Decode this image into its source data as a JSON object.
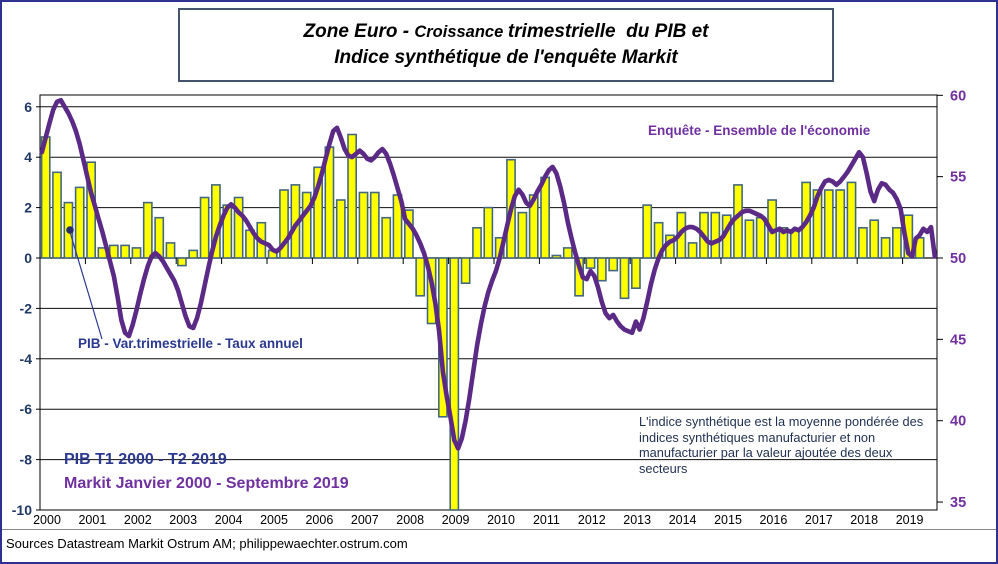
{
  "title": {
    "zone": "Zone Euro - ",
    "croissance": "Croissance ",
    "rest": "trimestrielle  du PIB et",
    "line2": "Indice synthétique de l'enquête Markit"
  },
  "legend": {
    "line_series": "Enquête - Ensemble de l'économie",
    "bar_series": "PIB - Var.trimestrielle - Taux annuel"
  },
  "coverage": {
    "pib": "PIB T1 2000 - T2 2019",
    "markit": "Markit Janvier 2000 - Septembre 2019"
  },
  "annotation": "L'indice synthétique est la moyenne pondérée des indices synthétiques manufacturier et non manufacturier par la valeur ajoutée  des deux secteurs",
  "footer": "Sources Datastream Markit Ostrum AM; philippewaechter.ostrum.com",
  "colors": {
    "bar_fill": "#FFFF00",
    "bar_stroke": "#44687F",
    "line": "#5B2A86",
    "left_axis_text": "#1F3864",
    "right_axis_text": "#7030A0",
    "navy_text": "#2B3990",
    "purple_text": "#7030A0",
    "frame": "#2E3192"
  },
  "chart_data": {
    "type": "bar+line",
    "title": "Zone Euro - Croissance trimestrielle du PIB et Indice synthétique de l'enquête Markit",
    "left_axis": {
      "label": "PIB - Var.trimestrielle - Taux annuel (%)",
      "ticks": [
        6,
        4,
        2,
        0,
        -2,
        -4,
        -6,
        -8,
        -10
      ],
      "range": [
        -10,
        6
      ]
    },
    "right_axis": {
      "label": "Enquête - Ensemble de l'économie (indice)",
      "ticks": [
        60,
        55,
        50,
        45,
        40,
        35
      ],
      "range": [
        35,
        60
      ]
    },
    "x_axis": {
      "years": [
        2000,
        2001,
        2002,
        2003,
        2004,
        2005,
        2006,
        2007,
        2008,
        2009,
        2010,
        2011,
        2012,
        2013,
        2014,
        2015,
        2016,
        2017,
        2018,
        2019
      ]
    },
    "grid": "horizontal, every 2 units of left axis",
    "legend_position": "annotations inside plot",
    "series": [
      {
        "name": "PIB - Var.trimestrielle - Taux annuel",
        "type": "bar",
        "axis": "left",
        "start": "2000T1",
        "end": "2019T2",
        "frequency": "quarterly",
        "values": [
          4.8,
          3.4,
          2.2,
          2.8,
          3.8,
          0.4,
          0.5,
          0.5,
          0.4,
          2.2,
          1.6,
          0.6,
          -0.3,
          0.3,
          2.4,
          2.9,
          2.1,
          2.4,
          1.1,
          1.4,
          0.3,
          2.7,
          2.9,
          2.6,
          3.6,
          4.4,
          2.3,
          4.9,
          2.6,
          2.6,
          1.6,
          2.5,
          1.9,
          -1.5,
          -2.6,
          -6.3,
          -11.8,
          -1.0,
          1.2,
          2.0,
          0.8,
          3.9,
          1.8,
          2.5,
          3.2,
          0.1,
          0.4,
          -1.5,
          -0.4,
          -0.9,
          -0.5,
          -1.6,
          -1.2,
          2.1,
          1.4,
          0.9,
          1.8,
          0.6,
          1.8,
          1.8,
          1.7,
          2.9,
          1.5,
          1.6,
          2.3,
          1.2,
          1.1,
          3.0,
          2.7,
          2.7,
          2.7,
          3.0,
          1.2,
          1.5,
          0.8,
          1.2,
          1.7,
          0.8
        ]
      },
      {
        "name": "Enquête - Ensemble de l'économie",
        "type": "line",
        "axis": "right",
        "start": "Janvier 2000",
        "end": "Septembre 2019",
        "frequency": "monthly",
        "values": [
          56.5,
          57.4,
          58.3,
          59.1,
          59.6,
          59.7,
          59.3,
          58.9,
          58.4,
          57.8,
          57.0,
          56.0,
          55.0,
          54.0,
          53.2,
          52.4,
          51.6,
          50.7,
          49.8,
          48.9,
          47.6,
          46.2,
          45.4,
          45.2,
          45.9,
          46.8,
          47.8,
          48.7,
          49.5,
          50.1,
          50.3,
          50.1,
          49.8,
          49.4,
          49.0,
          48.6,
          48.0,
          47.2,
          46.4,
          45.8,
          45.7,
          46.3,
          47.2,
          48.3,
          49.4,
          50.4,
          51.3,
          52.0,
          52.6,
          53.1,
          53.3,
          53.1,
          52.8,
          52.6,
          52.3,
          51.9,
          51.5,
          51.2,
          51.0,
          50.9,
          50.8,
          50.5,
          50.4,
          50.6,
          50.9,
          51.2,
          51.6,
          52.0,
          52.3,
          52.6,
          52.9,
          53.2,
          53.7,
          54.4,
          55.2,
          56.1,
          57.0,
          57.8,
          58.0,
          57.4,
          56.7,
          56.3,
          56.2,
          56.4,
          56.6,
          56.4,
          56.1,
          56.0,
          56.2,
          56.5,
          56.7,
          56.4,
          55.8,
          55.1,
          54.3,
          53.5,
          52.4,
          52.1,
          51.8,
          51.4,
          50.9,
          50.3,
          49.5,
          48.5,
          47.2,
          45.5,
          43.0,
          41.5,
          40.2,
          38.8,
          38.3,
          38.9,
          40.0,
          41.4,
          43.0,
          44.6,
          45.9,
          47.0,
          47.9,
          48.6,
          49.2,
          50.0,
          51.0,
          52.0,
          53.0,
          53.8,
          54.2,
          53.9,
          53.4,
          53.2,
          53.6,
          54.1,
          54.5,
          55.0,
          55.4,
          55.6,
          55.2,
          54.4,
          53.4,
          52.2,
          51.2,
          50.3,
          49.5,
          48.8,
          48.7,
          49.2,
          48.9,
          48.2,
          47.3,
          46.6,
          46.3,
          46.5,
          46.1,
          45.8,
          45.6,
          45.5,
          45.4,
          46.1,
          45.6,
          46.3,
          47.3,
          48.4,
          49.3,
          50.0,
          50.5,
          50.8,
          51.0,
          51.1,
          51.3,
          51.6,
          51.8,
          51.9,
          51.9,
          51.8,
          51.6,
          51.3,
          51.0,
          50.9,
          51.0,
          51.1,
          51.3,
          51.7,
          52.1,
          52.4,
          52.6,
          52.8,
          52.9,
          52.9,
          52.8,
          52.7,
          52.6,
          52.4,
          52.0,
          51.6,
          51.7,
          51.8,
          51.6,
          51.7,
          51.6,
          51.8,
          51.7,
          51.9,
          52.2,
          52.6,
          53.1,
          53.8,
          54.3,
          54.7,
          54.8,
          54.7,
          54.5,
          54.7,
          55.0,
          55.3,
          55.7,
          56.1,
          56.5,
          56.2,
          55.2,
          54.1,
          53.5,
          54.2,
          54.6,
          54.5,
          54.2,
          54.0,
          53.6,
          53.0,
          51.5,
          50.3,
          50.1,
          51.2,
          51.4,
          51.8,
          51.6,
          51.9,
          50.1
        ]
      }
    ]
  }
}
